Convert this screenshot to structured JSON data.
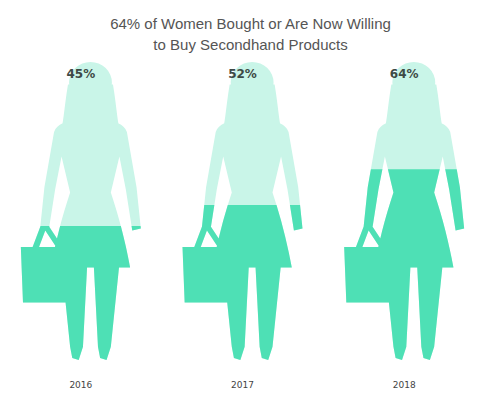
{
  "chart_data": {
    "type": "pictorial",
    "title": "64% of Women Bought or Are Now Willing\nto Buy Secondhand Products",
    "categories": [
      "2016",
      "2017",
      "2018"
    ],
    "values": [
      45,
      52,
      64
    ],
    "value_labels": [
      "45%",
      "52%",
      "64%"
    ],
    "color": "#4ee0b5",
    "ylim": [
      0,
      100
    ],
    "data_labels": true,
    "tick_labels": "x"
  }
}
